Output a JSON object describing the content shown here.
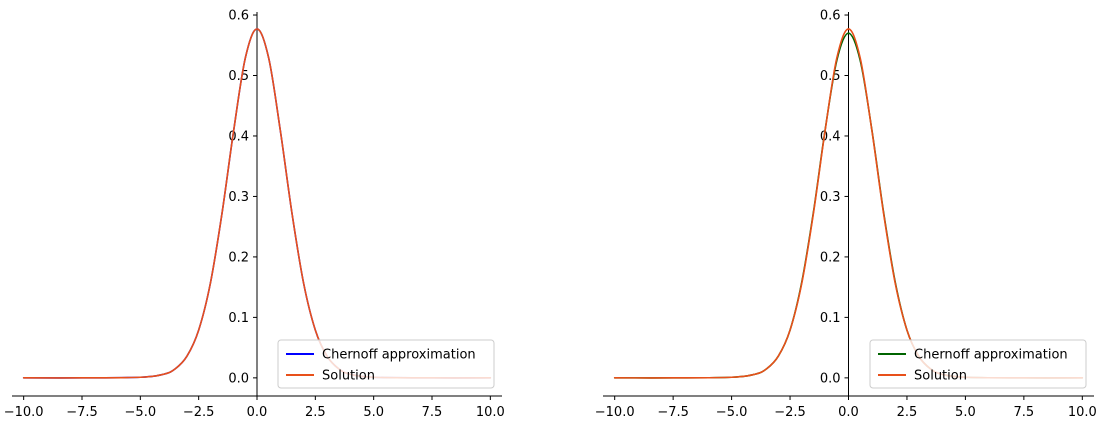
{
  "chart_data": [
    {
      "type": "line",
      "title": "",
      "xlabel": "",
      "ylabel": "",
      "xlim": [
        -10.5,
        10.5
      ],
      "ylim": [
        -0.03,
        0.605
      ],
      "x_ticks": [
        -10.0,
        -7.5,
        -5.0,
        -2.5,
        0.0,
        2.5,
        5.0,
        7.5,
        10.0
      ],
      "x_tick_labels": [
        "−10.0",
        "−7.5",
        "−5.0",
        "−2.5",
        "0.0",
        "2.5",
        "5.0",
        "7.5",
        "10.0"
      ],
      "y_ticks": [
        0.0,
        0.1,
        0.2,
        0.3,
        0.4,
        0.5,
        0.6
      ],
      "y_tick_labels": [
        "0.0",
        "0.1",
        "0.2",
        "0.3",
        "0.4",
        "0.5",
        "0.6"
      ],
      "grid": false,
      "legend_position": "lower-right",
      "x": [
        -10,
        -7.5,
        -5,
        -4,
        -3.5,
        -3,
        -2.5,
        -2,
        -1.5,
        -1,
        -0.5,
        0,
        0.5,
        1,
        1.5,
        2,
        2.5,
        3,
        3.5,
        4,
        5,
        7.5,
        10
      ],
      "series": [
        {
          "name": "Chernoff approximation",
          "color": "#0000ff",
          "values": [
            0.0,
            0.0,
            0.001,
            0.006,
            0.015,
            0.036,
            0.079,
            0.156,
            0.272,
            0.409,
            0.529,
            0.577,
            0.529,
            0.409,
            0.272,
            0.156,
            0.079,
            0.036,
            0.015,
            0.006,
            0.001,
            0.0,
            0.0
          ]
        },
        {
          "name": "Solution",
          "color": "#e8501a",
          "values": [
            0.0,
            0.0,
            0.001,
            0.006,
            0.015,
            0.036,
            0.079,
            0.156,
            0.272,
            0.409,
            0.529,
            0.577,
            0.529,
            0.409,
            0.272,
            0.156,
            0.079,
            0.036,
            0.015,
            0.006,
            0.001,
            0.0,
            0.0
          ]
        }
      ]
    },
    {
      "type": "line",
      "title": "",
      "xlabel": "",
      "ylabel": "",
      "xlim": [
        -10.5,
        10.5
      ],
      "ylim": [
        -0.03,
        0.605
      ],
      "x_ticks": [
        -10.0,
        -7.5,
        -5.0,
        -2.5,
        0.0,
        2.5,
        5.0,
        7.5,
        10.0
      ],
      "x_tick_labels": [
        "−10.0",
        "−7.5",
        "−5.0",
        "−2.5",
        "0.0",
        "2.5",
        "5.0",
        "7.5",
        "10.0"
      ],
      "y_ticks": [
        0.0,
        0.1,
        0.2,
        0.3,
        0.4,
        0.5,
        0.6
      ],
      "y_tick_labels": [
        "0.0",
        "0.1",
        "0.2",
        "0.3",
        "0.4",
        "0.5",
        "0.6"
      ],
      "grid": false,
      "legend_position": "lower-right",
      "x": [
        -10,
        -7.5,
        -5,
        -4,
        -3.5,
        -3,
        -2.5,
        -2,
        -1.5,
        -1,
        -0.5,
        0,
        0.5,
        1,
        1.5,
        2,
        2.5,
        3,
        3.5,
        4,
        5,
        7.5,
        10
      ],
      "series": [
        {
          "name": "Chernoff approximation",
          "color": "#006400",
          "values": [
            0.0,
            0.0,
            0.001,
            0.006,
            0.015,
            0.036,
            0.079,
            0.158,
            0.274,
            0.41,
            0.525,
            0.57,
            0.525,
            0.41,
            0.274,
            0.158,
            0.079,
            0.036,
            0.015,
            0.006,
            0.001,
            0.0,
            0.0
          ]
        },
        {
          "name": "Solution",
          "color": "#e8501a",
          "values": [
            0.0,
            0.0,
            0.001,
            0.006,
            0.015,
            0.036,
            0.079,
            0.156,
            0.272,
            0.409,
            0.529,
            0.577,
            0.529,
            0.409,
            0.272,
            0.156,
            0.079,
            0.036,
            0.015,
            0.006,
            0.001,
            0.0,
            0.0
          ]
        }
      ]
    }
  ]
}
